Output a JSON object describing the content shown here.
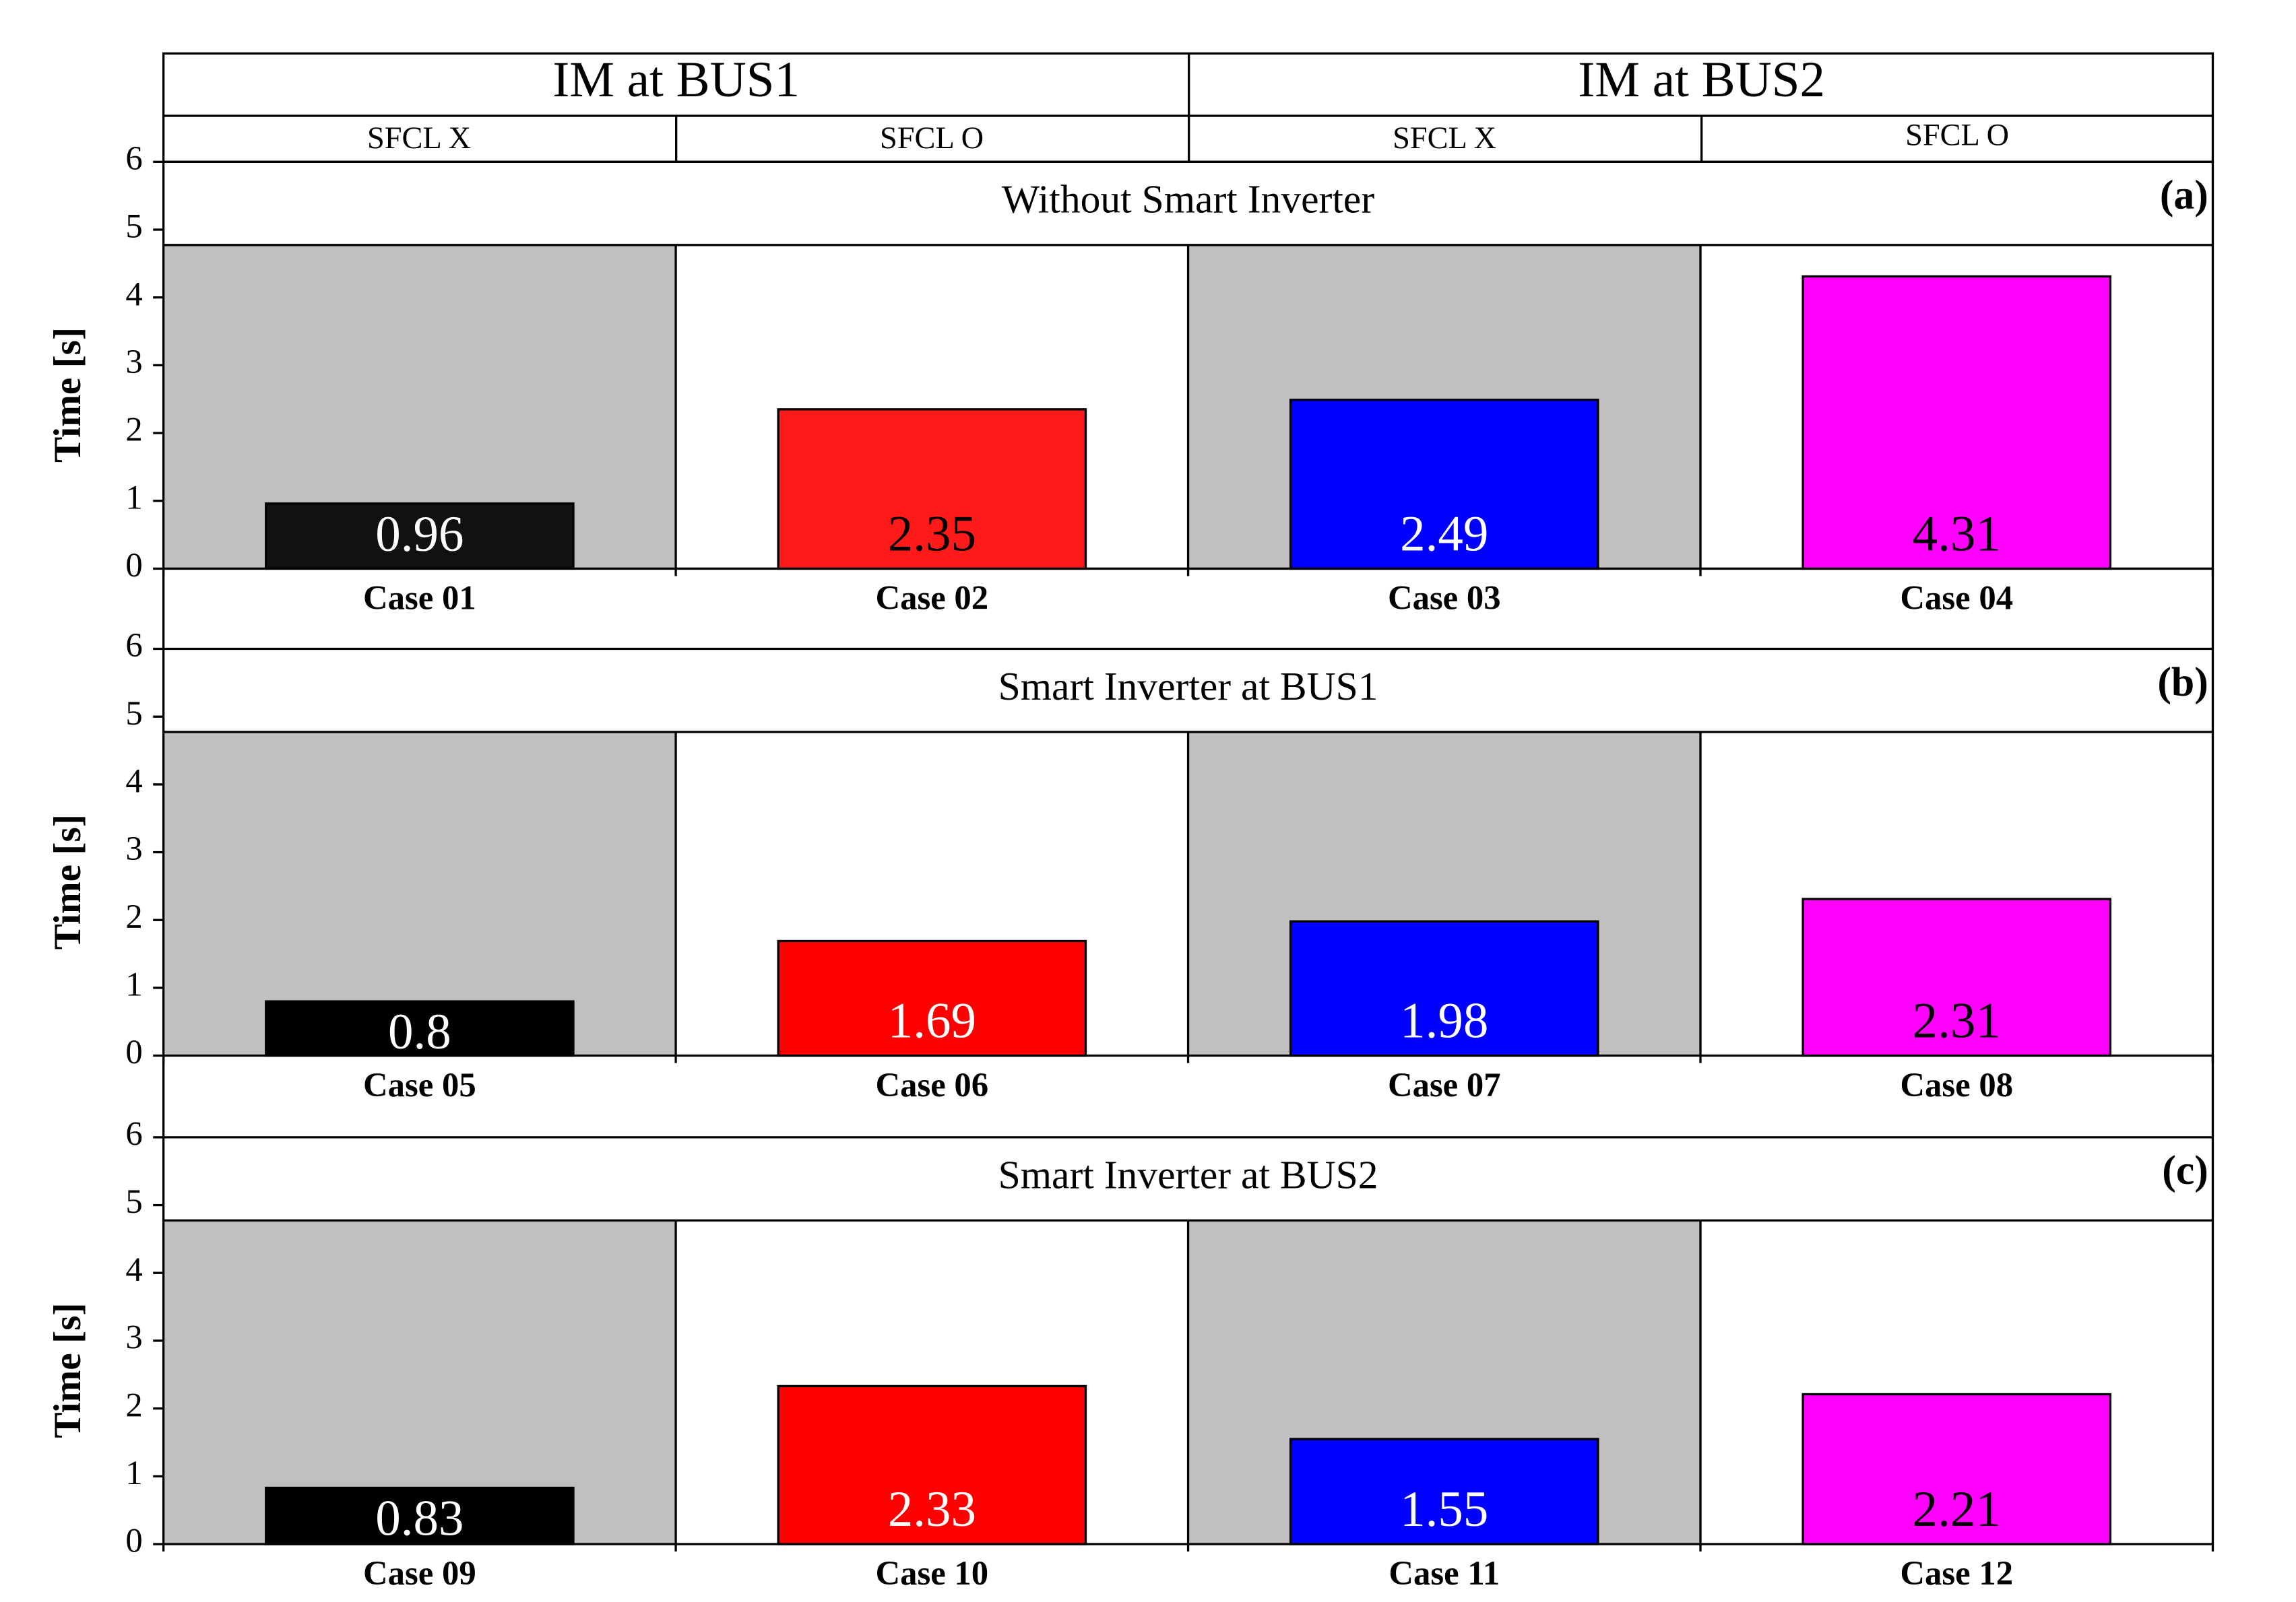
{
  "header": {
    "groups": [
      "IM at BUS1",
      "IM at BUS2"
    ],
    "subgroups": [
      "SFCL X",
      "SFCL O",
      "SFCL X",
      "SFCL O"
    ]
  },
  "chart_data": [
    {
      "type": "bar",
      "title": "Without Smart Inverter",
      "panel_label": "(a)",
      "ylabel": "Time [s]",
      "categories": [
        "Case 01",
        "Case 02",
        "Case 03",
        "Case 04"
      ],
      "values": [
        0.96,
        2.35,
        2.49,
        4.31
      ],
      "colors": [
        "#111111",
        "#ff1a1a",
        "#0000ff",
        "#ff00ff"
      ],
      "ylim": [
        0,
        6
      ],
      "yticks": [
        0,
        1,
        2,
        3,
        4,
        5,
        6
      ]
    },
    {
      "type": "bar",
      "title": "Smart Inverter at BUS1",
      "panel_label": "(b)",
      "ylabel": "Time [s]",
      "categories": [
        "Case 05",
        "Case 06",
        "Case 07",
        "Case 08"
      ],
      "values": [
        0.8,
        1.69,
        1.98,
        2.31
      ],
      "colors": [
        "#000000",
        "#ff0000",
        "#0000ff",
        "#ff00ff"
      ],
      "ylim": [
        0,
        6
      ],
      "yticks": [
        0,
        1,
        2,
        3,
        4,
        5,
        6
      ]
    },
    {
      "type": "bar",
      "title": "Smart Inverter at BUS2",
      "panel_label": "(c)",
      "ylabel": "Time [s]",
      "categories": [
        "Case 09",
        "Case 10",
        "Case 11",
        "Case 12"
      ],
      "values": [
        0.83,
        2.33,
        1.55,
        2.21
      ],
      "colors": [
        "#000000",
        "#ff0000",
        "#0000ff",
        "#ff00ff"
      ],
      "ylim": [
        0,
        6
      ],
      "yticks": [
        0,
        1,
        2,
        3,
        4,
        5,
        6
      ]
    }
  ]
}
